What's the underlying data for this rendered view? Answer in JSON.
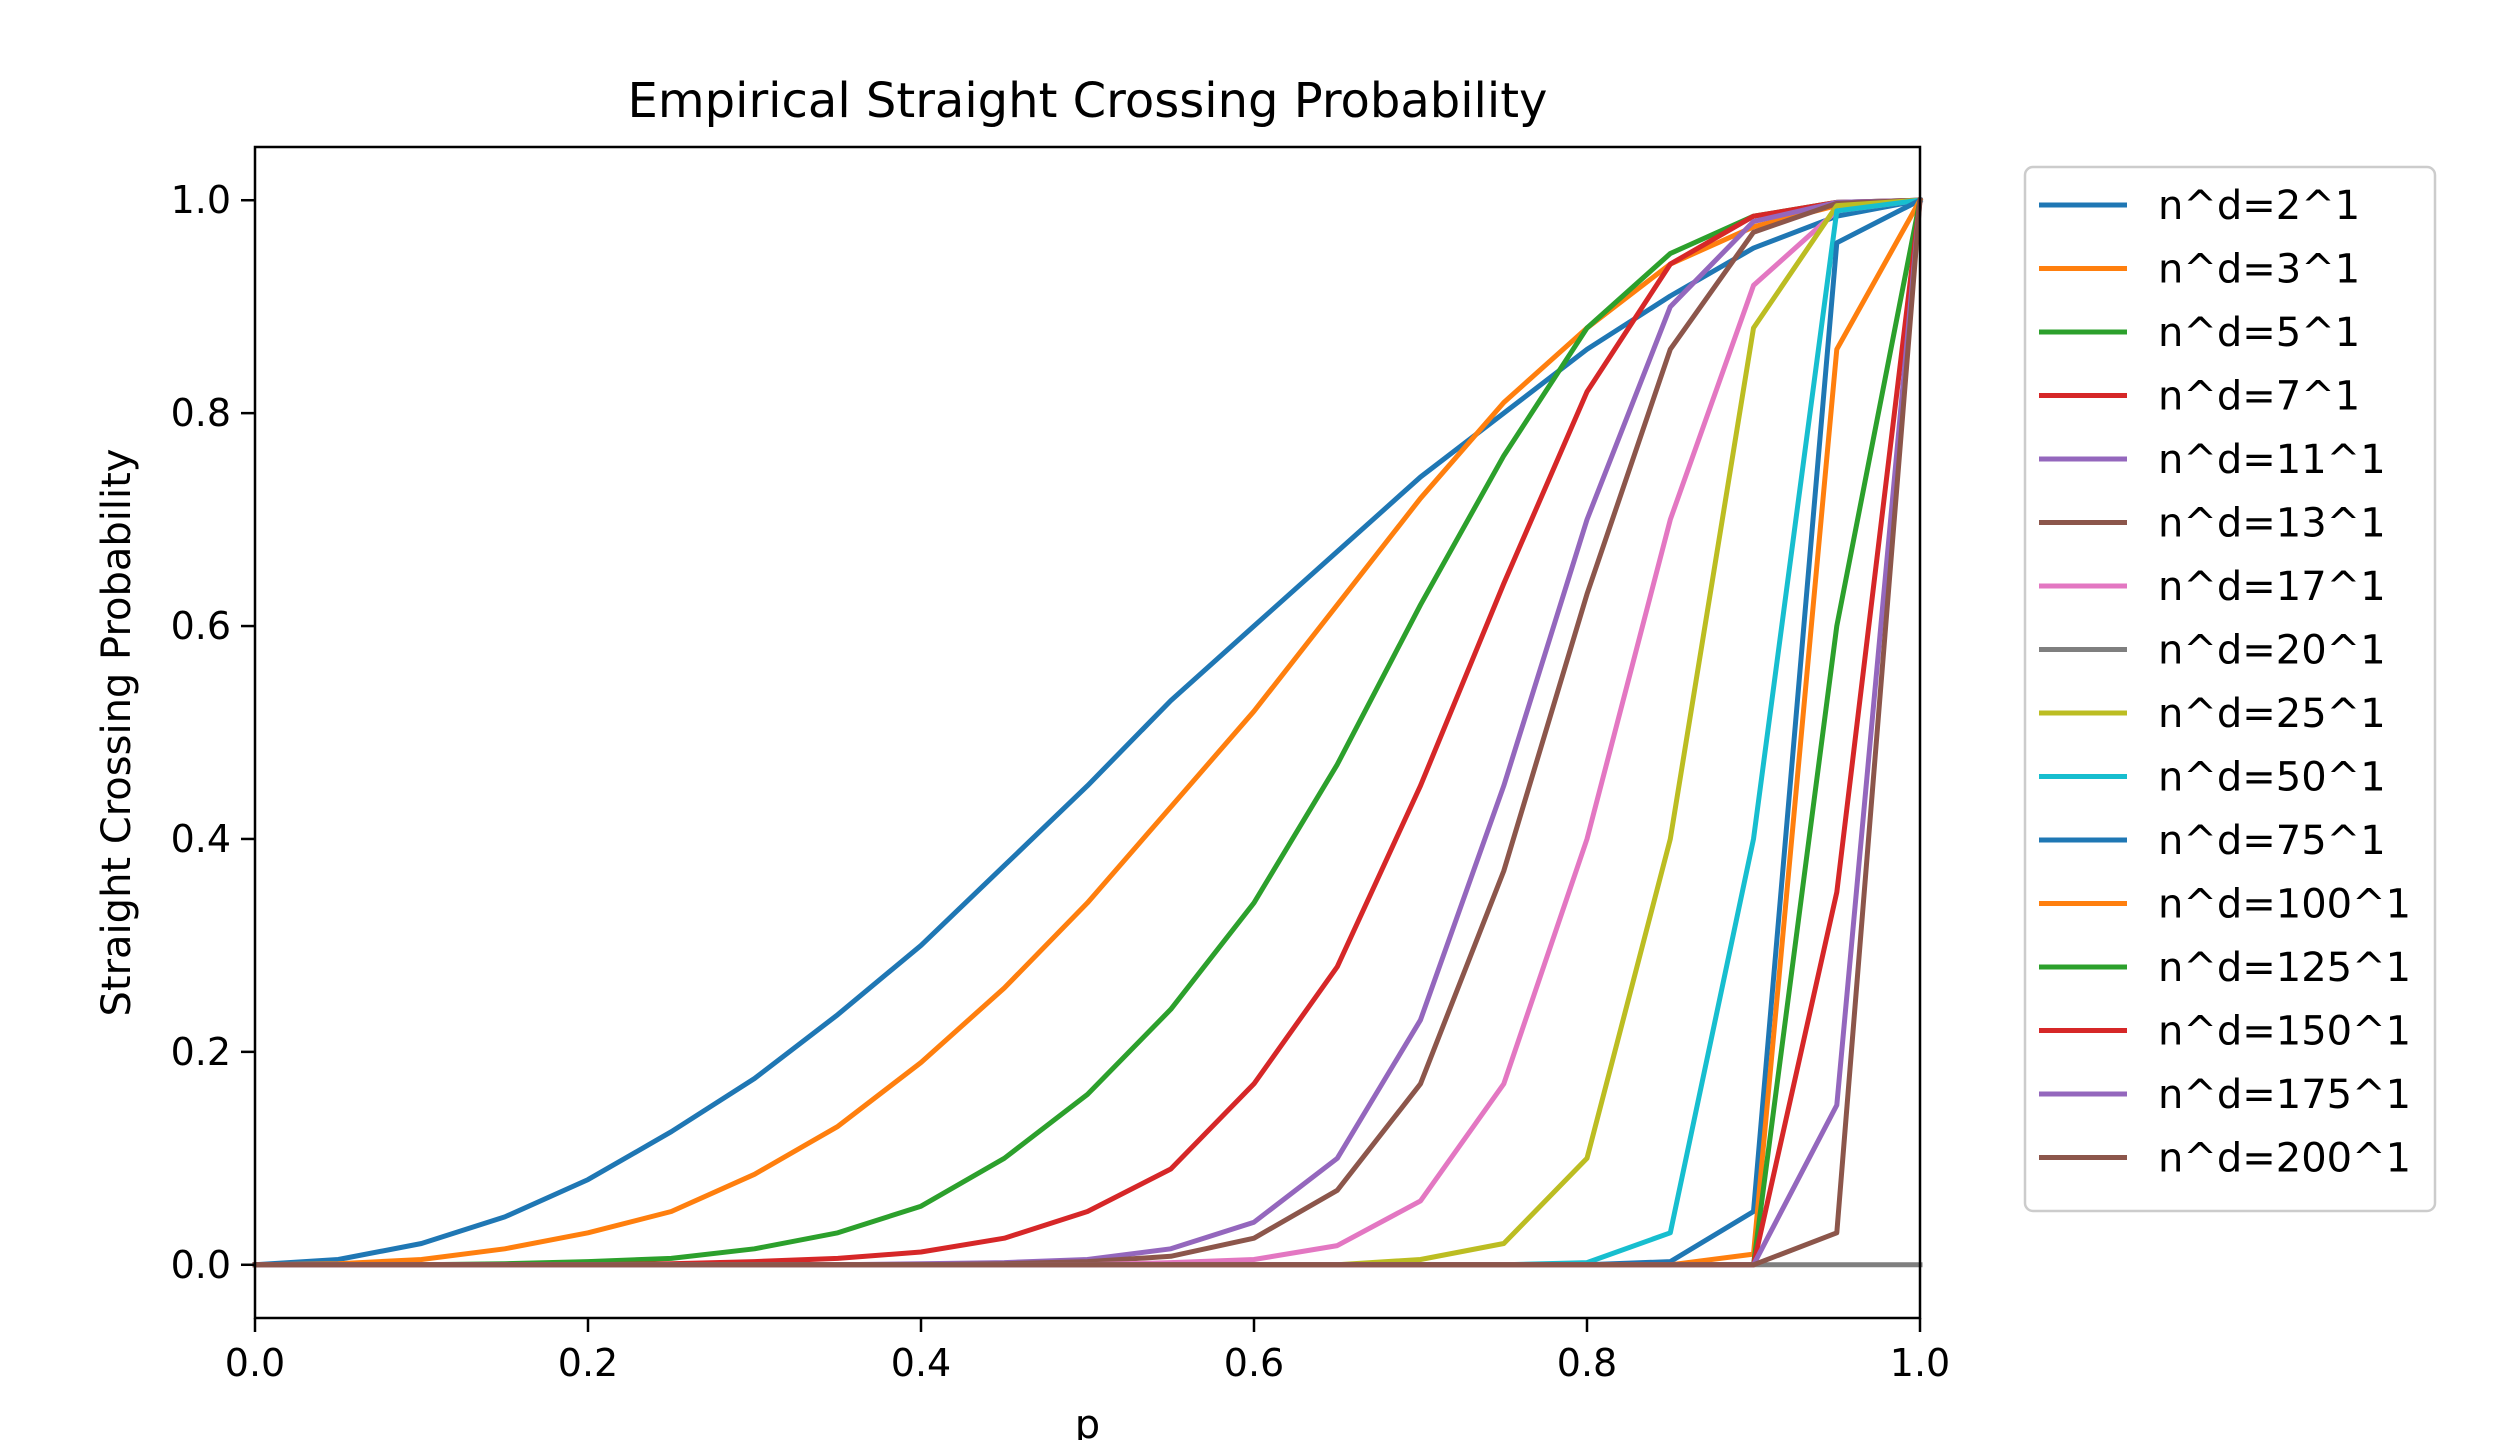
{
  "chart_data": {
    "type": "line",
    "title": "Empirical Straight Crossing Probability",
    "xlabel": "p",
    "ylabel": "Straight Crossing Probability",
    "xlim": [
      0.0,
      1.0
    ],
    "ylim": [
      -0.05,
      1.05
    ],
    "xticks": [
      "0.0",
      "0.2",
      "0.4",
      "0.6",
      "0.8",
      "1.0"
    ],
    "yticks": [
      "0.0",
      "0.2",
      "0.4",
      "0.6",
      "0.8",
      "1.0"
    ],
    "grid": false,
    "legend_position": "outside-right",
    "x": [
      0.0,
      0.05,
      0.1,
      0.15,
      0.2,
      0.25,
      0.3,
      0.35,
      0.4,
      0.45,
      0.5,
      0.55,
      0.6,
      0.65,
      0.7,
      0.75,
      0.8,
      0.85,
      0.9,
      0.95,
      1.0
    ],
    "series": [
      {
        "name": "n^d=2^1",
        "color": "#1f77b4",
        "values": [
          0.0,
          0.005,
          0.02,
          0.045,
          0.08,
          0.125,
          0.175,
          0.235,
          0.3,
          0.375,
          0.45,
          0.53,
          0.6,
          0.67,
          0.74,
          0.8,
          0.86,
          0.91,
          0.955,
          0.985,
          1.0
        ]
      },
      {
        "name": "n^d=3^1",
        "color": "#ff7f0e",
        "values": [
          0.0,
          0.001,
          0.005,
          0.015,
          0.03,
          0.05,
          0.085,
          0.13,
          0.19,
          0.26,
          0.34,
          0.43,
          0.52,
          0.62,
          0.72,
          0.81,
          0.88,
          0.94,
          0.975,
          0.995,
          1.0
        ]
      },
      {
        "name": "n^d=5^1",
        "color": "#2ca02c",
        "values": [
          0.0,
          0.0,
          0.0,
          0.001,
          0.003,
          0.006,
          0.015,
          0.03,
          0.055,
          0.1,
          0.16,
          0.24,
          0.34,
          0.47,
          0.62,
          0.76,
          0.88,
          0.95,
          0.985,
          0.998,
          1.0
        ]
      },
      {
        "name": "n^d=7^1",
        "color": "#d62728",
        "values": [
          0.0,
          0.0,
          0.0,
          0.0,
          0.0,
          0.001,
          0.003,
          0.006,
          0.012,
          0.025,
          0.05,
          0.09,
          0.17,
          0.28,
          0.45,
          0.64,
          0.82,
          0.94,
          0.985,
          0.998,
          1.0
        ]
      },
      {
        "name": "n^d=11^1",
        "color": "#9467bd",
        "values": [
          0.0,
          0.0,
          0.0,
          0.0,
          0.0,
          0.0,
          0.0,
          0.0,
          0.001,
          0.002,
          0.005,
          0.015,
          0.04,
          0.1,
          0.23,
          0.45,
          0.7,
          0.9,
          0.98,
          0.998,
          1.0
        ]
      },
      {
        "name": "n^d=13^1",
        "color": "#8c564b",
        "values": [
          0.0,
          0.0,
          0.0,
          0.0,
          0.0,
          0.0,
          0.0,
          0.0,
          0.0,
          0.001,
          0.003,
          0.008,
          0.025,
          0.07,
          0.17,
          0.37,
          0.63,
          0.86,
          0.97,
          0.997,
          1.0
        ]
      },
      {
        "name": "n^d=17^1",
        "color": "#e377c2",
        "values": [
          0.0,
          0.0,
          0.0,
          0.0,
          0.0,
          0.0,
          0.0,
          0.0,
          0.0,
          0.0,
          0.0,
          0.002,
          0.005,
          0.018,
          0.06,
          0.17,
          0.4,
          0.7,
          0.92,
          0.99,
          1.0
        ]
      },
      {
        "name": "n^d=20^1",
        "color": "#7f7f7f",
        "values": [
          0.0,
          0.0,
          0.0,
          0.0,
          0.0,
          0.0,
          0.0,
          0.0,
          0.0,
          0.0,
          0.0,
          0.0,
          0.0,
          0.0,
          0.0,
          0.0,
          0.0,
          0.0,
          0.0,
          0.0,
          0.0
        ]
      },
      {
        "name": "n^d=25^1",
        "color": "#bcbd22",
        "values": [
          0.0,
          0.0,
          0.0,
          0.0,
          0.0,
          0.0,
          0.0,
          0.0,
          0.0,
          0.0,
          0.0,
          0.0,
          0.0,
          0.0,
          0.005,
          0.02,
          0.1,
          0.4,
          0.88,
          0.995,
          1.0
        ]
      },
      {
        "name": "n^d=50^1",
        "color": "#17becf",
        "values": [
          0.0,
          0.0,
          0.0,
          0.0,
          0.0,
          0.0,
          0.0,
          0.0,
          0.0,
          0.0,
          0.0,
          0.0,
          0.0,
          0.0,
          0.0,
          0.0,
          0.002,
          0.03,
          0.4,
          0.99,
          1.0
        ]
      },
      {
        "name": "n^d=75^1",
        "color": "#1f77b4",
        "values": [
          0.0,
          0.0,
          0.0,
          0.0,
          0.0,
          0.0,
          0.0,
          0.0,
          0.0,
          0.0,
          0.0,
          0.0,
          0.0,
          0.0,
          0.0,
          0.0,
          0.0,
          0.003,
          0.05,
          0.96,
          1.0
        ]
      },
      {
        "name": "n^d=100^1",
        "color": "#ff7f0e",
        "values": [
          0.0,
          0.0,
          0.0,
          0.0,
          0.0,
          0.0,
          0.0,
          0.0,
          0.0,
          0.0,
          0.0,
          0.0,
          0.0,
          0.0,
          0.0,
          0.0,
          0.0,
          0.0,
          0.01,
          0.86,
          1.0
        ]
      },
      {
        "name": "n^d=125^1",
        "color": "#2ca02c",
        "values": [
          0.0,
          0.0,
          0.0,
          0.0,
          0.0,
          0.0,
          0.0,
          0.0,
          0.0,
          0.0,
          0.0,
          0.0,
          0.0,
          0.0,
          0.0,
          0.0,
          0.0,
          0.0,
          0.0,
          0.6,
          1.0
        ]
      },
      {
        "name": "n^d=150^1",
        "color": "#d62728",
        "values": [
          0.0,
          0.0,
          0.0,
          0.0,
          0.0,
          0.0,
          0.0,
          0.0,
          0.0,
          0.0,
          0.0,
          0.0,
          0.0,
          0.0,
          0.0,
          0.0,
          0.0,
          0.0,
          0.0,
          0.35,
          1.0
        ]
      },
      {
        "name": "n^d=175^1",
        "color": "#9467bd",
        "values": [
          0.0,
          0.0,
          0.0,
          0.0,
          0.0,
          0.0,
          0.0,
          0.0,
          0.0,
          0.0,
          0.0,
          0.0,
          0.0,
          0.0,
          0.0,
          0.0,
          0.0,
          0.0,
          0.0,
          0.15,
          1.0
        ]
      },
      {
        "name": "n^d=200^1",
        "color": "#8c564b",
        "values": [
          0.0,
          0.0,
          0.0,
          0.0,
          0.0,
          0.0,
          0.0,
          0.0,
          0.0,
          0.0,
          0.0,
          0.0,
          0.0,
          0.0,
          0.0,
          0.0,
          0.0,
          0.0,
          0.0,
          0.03,
          1.0
        ]
      }
    ]
  }
}
